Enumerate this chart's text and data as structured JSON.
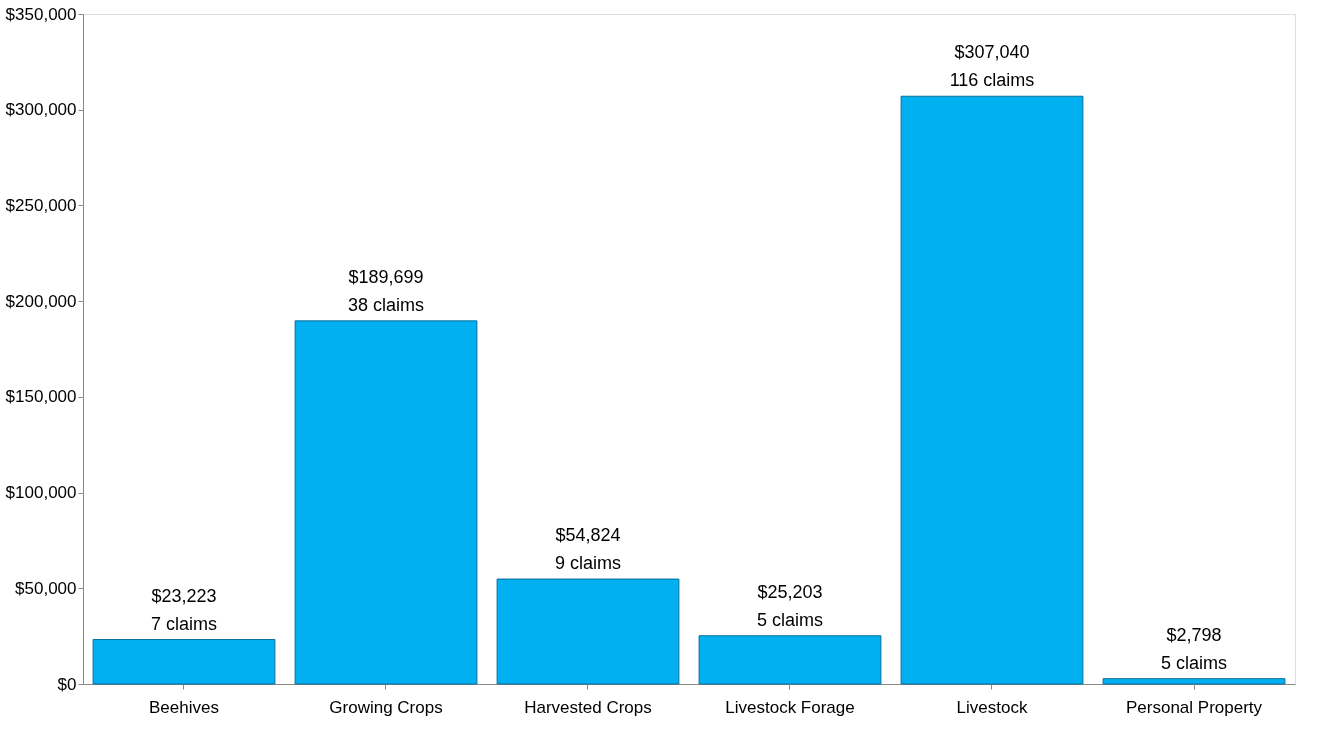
{
  "chart_data": {
    "type": "bar",
    "categories": [
      "Beehives",
      "Growing Crops",
      "Harvested Crops",
      "Livestock Forage",
      "Livestock",
      "Personal Property"
    ],
    "values": [
      23223,
      189699,
      54824,
      25203,
      307040,
      2798
    ],
    "value_labels": [
      "$23,223\n7 claims",
      "$189,699\n38 claims",
      "$54,824\n9 claims",
      "$25,203\n5 claims",
      "$307,040\n116 claims",
      "$2,798\n5 claims"
    ],
    "color": "#00b0f0",
    "ylim": [
      0,
      350000
    ],
    "yticks": [
      {
        "value": 0,
        "label": "$0"
      },
      {
        "value": 50000,
        "label": "$50,000"
      },
      {
        "value": 100000,
        "label": "$100,000"
      },
      {
        "value": 150000,
        "label": "$150,000"
      },
      {
        "value": 200000,
        "label": "$200,000"
      },
      {
        "value": 250000,
        "label": "$250,000"
      },
      {
        "value": 300000,
        "label": "$300,000"
      },
      {
        "value": 350000,
        "label": "$350,000"
      }
    ],
    "grid": false
  }
}
